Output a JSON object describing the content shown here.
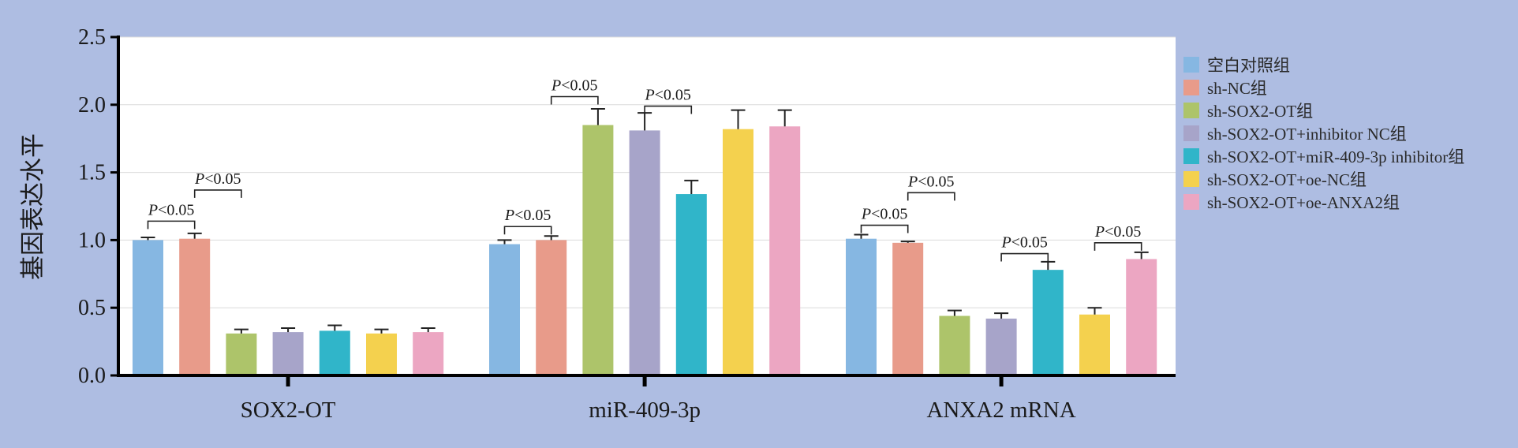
{
  "chart_data": {
    "type": "bar",
    "ylabel": "基因表达水平",
    "ylim": [
      0,
      2.5
    ],
    "yticks": [
      "0.0",
      "0.5",
      "1.0",
      "1.5",
      "2.0",
      "2.5"
    ],
    "grid": true,
    "legend_position": "right",
    "categories": [
      "SOX2-OT",
      "miR-409-3p",
      "ANXA2 mRNA"
    ],
    "series": [
      {
        "name": "空白对照组",
        "color": "#86b7e2",
        "values": [
          1.0,
          0.97,
          1.01
        ],
        "errors": [
          0.02,
          0.03,
          0.03
        ]
      },
      {
        "name": "sh-NC组",
        "color": "#e89b8a",
        "values": [
          1.01,
          1.0,
          0.98
        ],
        "errors": [
          0.04,
          0.03,
          0.01
        ]
      },
      {
        "name": "sh-SOX2-OT组",
        "color": "#adc46a",
        "values": [
          0.31,
          1.85,
          0.44
        ],
        "errors": [
          0.03,
          0.12,
          0.04
        ]
      },
      {
        "name": "sh-SOX2-OT+inhibitor NC组",
        "color": "#a7a4c9",
        "values": [
          0.32,
          1.81,
          0.42
        ],
        "errors": [
          0.03,
          0.13,
          0.04
        ]
      },
      {
        "name": "sh-SOX2-OT+miR-409-3p inhibitor组",
        "color": "#30b5c9",
        "values": [
          0.33,
          1.34,
          0.78
        ],
        "errors": [
          0.04,
          0.1,
          0.06
        ]
      },
      {
        "name": "sh-SOX2-OT+oe-NC组",
        "color": "#f4d14e",
        "values": [
          0.31,
          1.82,
          0.45
        ],
        "errors": [
          0.03,
          0.14,
          0.05
        ]
      },
      {
        "name": "sh-SOX2-OT+oe-ANXA2组",
        "color": "#eca6c2",
        "values": [
          0.32,
          1.84,
          0.86
        ],
        "errors": [
          0.03,
          0.12,
          0.05
        ]
      }
    ],
    "annotations": [
      {
        "text": "P<0.05",
        "category": 0,
        "from": 0,
        "to": 1,
        "level": 1.14
      },
      {
        "text": "P<0.05",
        "category": 0,
        "from": 1,
        "to": 2,
        "level": 1.37
      },
      {
        "text": "P<0.05",
        "category": 1,
        "from": 0,
        "to": 1,
        "level": 1.1
      },
      {
        "text": "P<0.05",
        "category": 1,
        "from": 1,
        "to": 2,
        "level": 2.06
      },
      {
        "text": "P<0.05",
        "category": 1,
        "from": 3,
        "to": 4,
        "level": 1.99
      },
      {
        "text": "P<0.05",
        "category": 2,
        "from": 0,
        "to": 1,
        "level": 1.11
      },
      {
        "text": "P<0.05",
        "category": 2,
        "from": 1,
        "to": 2,
        "level": 1.35
      },
      {
        "text": "P<0.05",
        "category": 2,
        "from": 3,
        "to": 4,
        "level": 0.9
      },
      {
        "text": "P<0.05",
        "category": 2,
        "from": 5,
        "to": 6,
        "level": 0.98
      }
    ]
  }
}
